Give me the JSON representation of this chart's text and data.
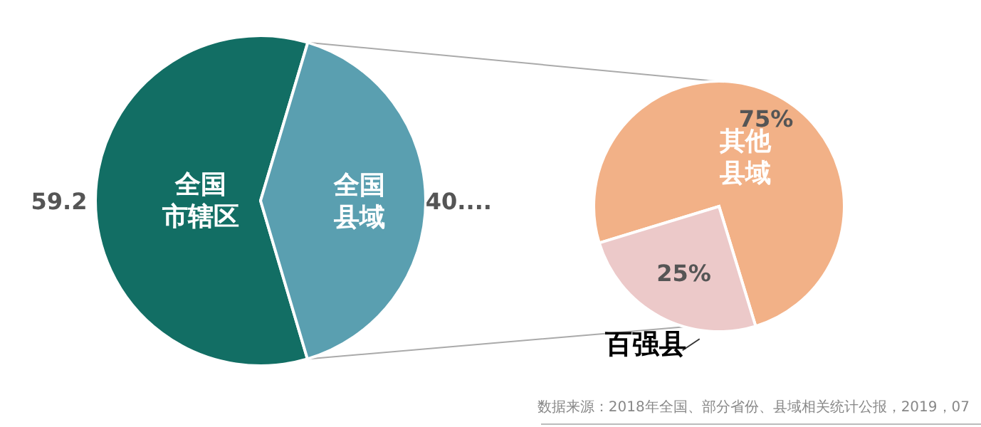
{
  "chart_data": [
    {
      "type": "pie",
      "categories": [
        "全国市辖区",
        "全国县域"
      ],
      "values": [
        59.2,
        40.8
      ],
      "value_labels": [
        "59.2",
        "40...."
      ],
      "colors": [
        "#126e64",
        "#5a9fb0"
      ]
    },
    {
      "type": "pie",
      "categories": [
        "其他县域",
        "百强县"
      ],
      "values": [
        75,
        25
      ],
      "value_labels": [
        "75%",
        "25%"
      ],
      "colors": [
        "#f2b187",
        "#ecc9c9"
      ],
      "annotations": [
        "数据来源：2018年全国、部分省份、县域相关统计公报，2019，07"
      ]
    }
  ]
}
